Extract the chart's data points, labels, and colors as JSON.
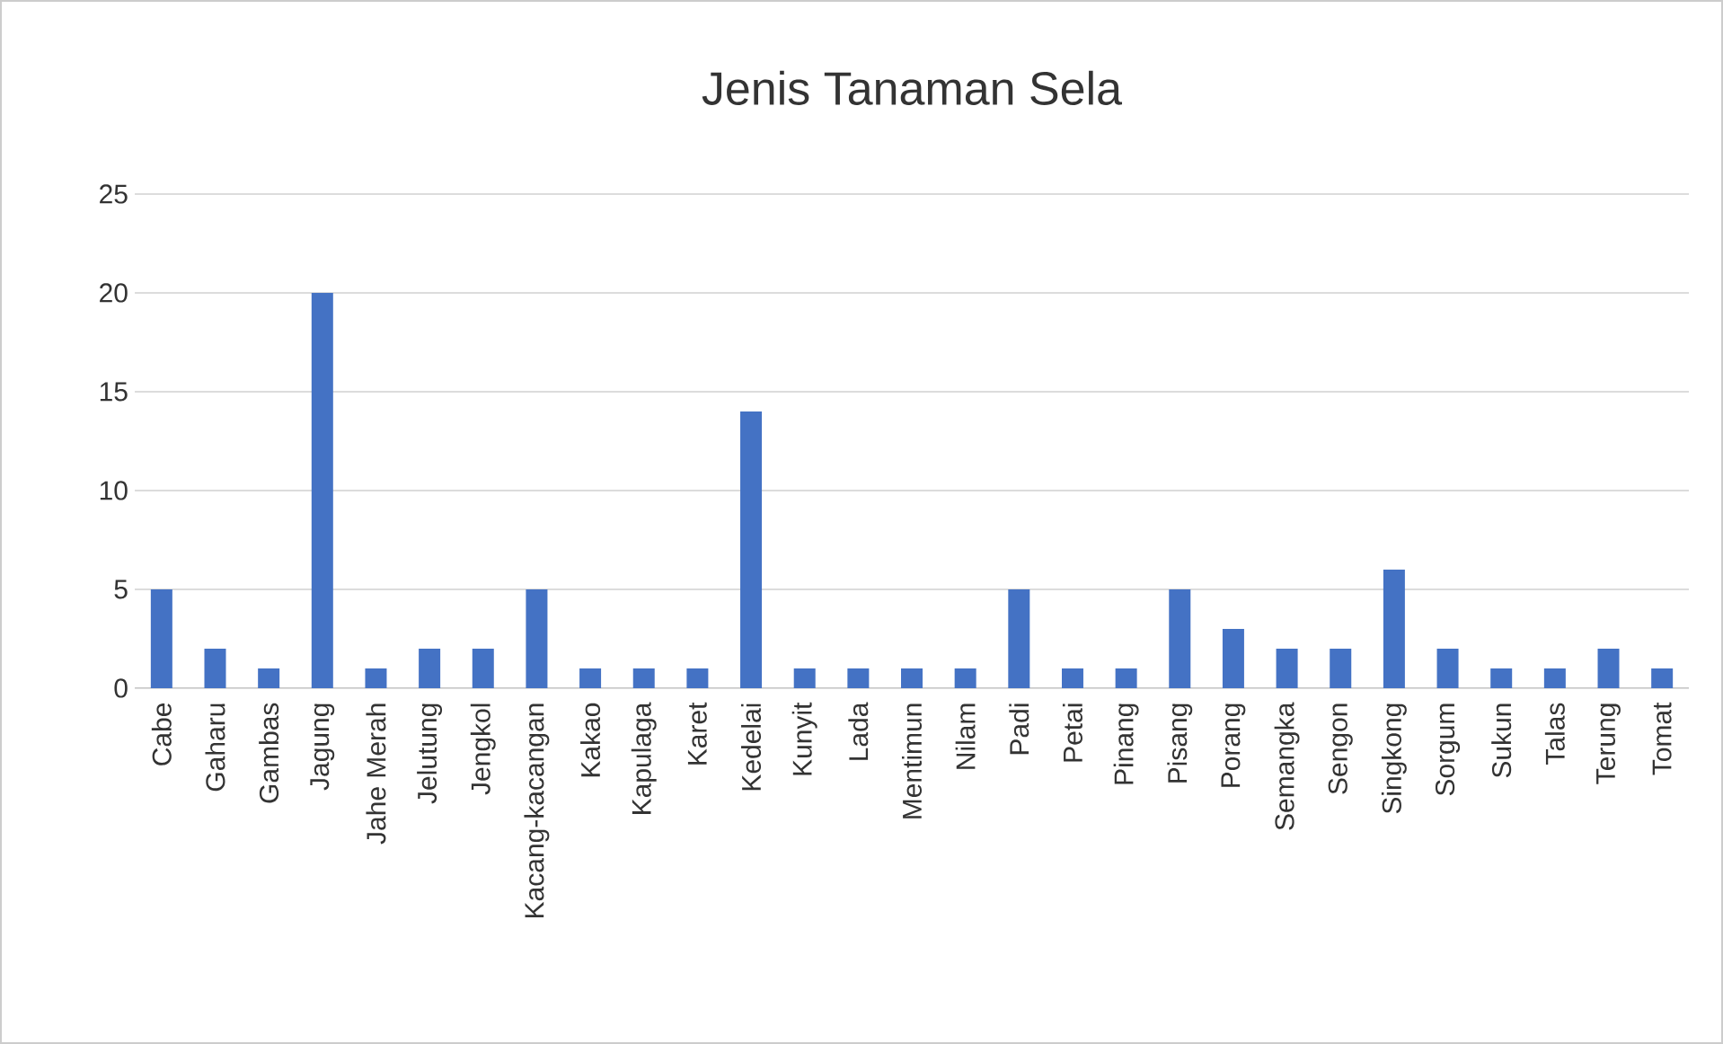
{
  "chart_data": {
    "type": "bar",
    "title": "Jenis Tanaman Sela",
    "categories": [
      "Cabe",
      "Gaharu",
      "Gambas",
      "Jagung",
      "Jahe Merah",
      "Jelutung",
      "Jengkol",
      "Kacang-kacangan",
      "Kakao",
      "Kapulaga",
      "Karet",
      "Kedelai",
      "Kunyit",
      "Lada",
      "Mentimun",
      "Nilam",
      "Padi",
      "Petai",
      "Pinang",
      "Pisang",
      "Porang",
      "Semangka",
      "Sengon",
      "Singkong",
      "Sorgum",
      "Sukun",
      "Talas",
      "Terung",
      "Tomat"
    ],
    "values": [
      5,
      2,
      1,
      20,
      1,
      2,
      2,
      5,
      1,
      1,
      1,
      14,
      1,
      1,
      1,
      1,
      5,
      1,
      1,
      5,
      3,
      2,
      2,
      6,
      2,
      1,
      1,
      2,
      1
    ],
    "color": "#4472c4",
    "ylim": [
      0,
      25
    ],
    "yticks": [
      0,
      5,
      10,
      15,
      20,
      25
    ],
    "grid": "y"
  }
}
